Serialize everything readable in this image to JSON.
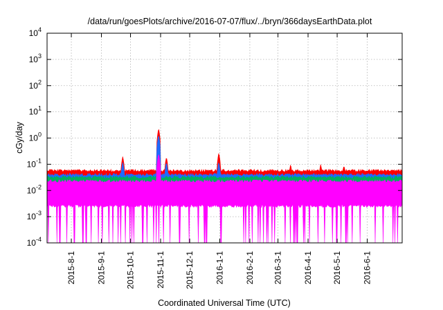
{
  "chart_data": {
    "type": "line",
    "title": "/data/run/goesPlots/archive/2016-07-07/flux/../bryn/366daysEarthData.plot",
    "xlabel": "Coordinated Universal Time (UTC)",
    "ylabel": "cGy/day",
    "yscale": "log",
    "ylim": [
      0.0001,
      10000
    ],
    "xlim": [
      "2015-07-07",
      "2016-07-07"
    ],
    "grid": true,
    "y_ticks": [
      {
        "value": 0.0001,
        "base": "10",
        "exp": "-4"
      },
      {
        "value": 0.001,
        "base": "10",
        "exp": "-3"
      },
      {
        "value": 0.01,
        "base": "10",
        "exp": "-2"
      },
      {
        "value": 0.1,
        "base": "10",
        "exp": "-1"
      },
      {
        "value": 1,
        "base": "10",
        "exp": "0"
      },
      {
        "value": 10,
        "base": "10",
        "exp": "1"
      },
      {
        "value": 100,
        "base": "10",
        "exp": "2"
      },
      {
        "value": 1000,
        "base": "10",
        "exp": "3"
      },
      {
        "value": 10000,
        "base": "10",
        "exp": "4"
      }
    ],
    "x_ticks": [
      "2015-8-1",
      "2015-9-1",
      "2015-10-1",
      "2015-11-1",
      "2015-12-1",
      "2016-1-1",
      "2016-2-1",
      "2016-3-1",
      "2016-4-1",
      "2016-5-1",
      "2016-6-1"
    ],
    "series": [
      {
        "color": "#ff0000",
        "baseline": 0.05,
        "spikes": [
          [
            "2015-09-23",
            0.2
          ],
          [
            "2015-10-30",
            2.3
          ],
          [
            "2015-11-07",
            0.19
          ],
          [
            "2015-12-31",
            0.27
          ],
          [
            "2016-03-14",
            0.1
          ],
          [
            "2016-04-14",
            0.1
          ],
          [
            "2016-05-08",
            0.09
          ]
        ]
      },
      {
        "color": "#1f6bff",
        "baseline": 0.035,
        "spikes": [
          [
            "2015-09-23",
            0.12
          ],
          [
            "2015-10-30",
            1.3
          ],
          [
            "2015-11-07",
            0.12
          ],
          [
            "2015-12-31",
            0.12
          ]
        ]
      },
      {
        "color": "#00b060",
        "baseline": 0.028,
        "spikes": [
          [
            "2015-10-30",
            0.15
          ]
        ]
      },
      {
        "color": "#ff00ff",
        "baseline": 0.02,
        "floor": 0.0025,
        "spikes": [
          [
            "2015-10-30",
            0.25
          ]
        ]
      }
    ]
  }
}
